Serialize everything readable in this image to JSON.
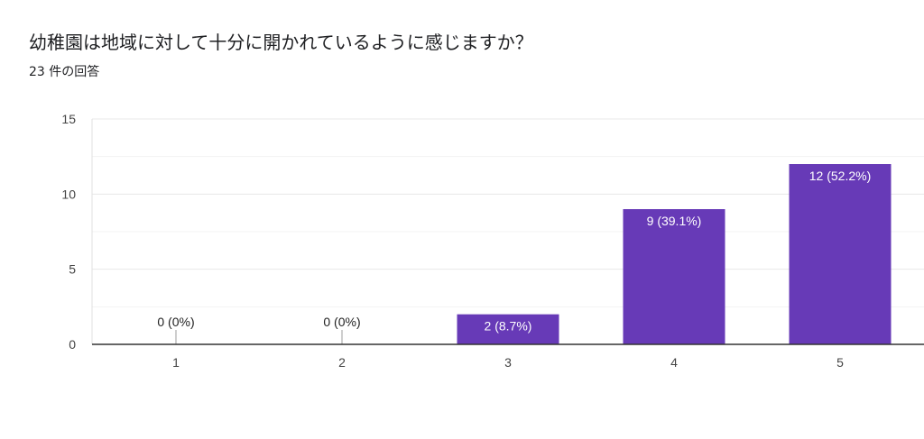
{
  "question": {
    "title": "幼稚園は地域に対して十分に開かれているように感じますか？",
    "response_count": "23 件の回答"
  },
  "chart_data": {
    "type": "bar",
    "categories": [
      "1",
      "2",
      "3",
      "4",
      "5"
    ],
    "values": [
      0,
      0,
      2,
      9,
      12
    ],
    "data_labels": [
      "0 (0%)",
      "0 (0%)",
      "2 (8.7%)",
      "9 (39.1%)",
      "12 (52.2%)"
    ],
    "y_ticks": [
      "0",
      "5",
      "10",
      "15"
    ],
    "ylim": [
      0,
      15
    ],
    "grid": true,
    "title": "幼稚園は地域に対して十分に開かれているように感じますか？",
    "xlabel": "",
    "ylabel": "",
    "colors": {
      "bar": "#673ab7",
      "gridline": "#e8e8e8",
      "baseline": "#333333",
      "inside_label": "#ffffff",
      "outside_label": "#222222"
    }
  }
}
